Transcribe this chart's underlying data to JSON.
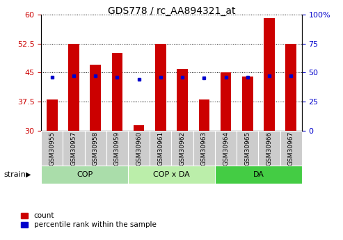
{
  "title": "GDS778 / rc_AA894321_at",
  "samples": [
    "GSM30955",
    "GSM30957",
    "GSM30958",
    "GSM30959",
    "GSM30960",
    "GSM30961",
    "GSM30962",
    "GSM30963",
    "GSM30964",
    "GSM30965",
    "GSM30966",
    "GSM30967"
  ],
  "count_values": [
    38.0,
    52.5,
    47.0,
    50.0,
    31.5,
    52.5,
    46.0,
    38.0,
    45.0,
    44.0,
    59.0,
    52.5
  ],
  "percentile_values": [
    46.0,
    47.0,
    47.0,
    46.0,
    44.5,
    46.0,
    46.0,
    45.5,
    46.0,
    46.0,
    47.0,
    47.0
  ],
  "ylim_left": [
    30,
    60
  ],
  "ylim_right": [
    0,
    100
  ],
  "yticks_left": [
    30,
    37.5,
    45,
    52.5,
    60
  ],
  "yticks_right": [
    0,
    25,
    50,
    75,
    100
  ],
  "bar_color": "#cc0000",
  "dot_color": "#0000cc",
  "bar_bottom": 30,
  "group_labels": [
    "COP",
    "COP x DA",
    "DA"
  ],
  "group_starts": [
    0,
    4,
    8
  ],
  "group_ends": [
    4,
    8,
    12
  ],
  "group_colors": [
    "#aaddaa",
    "#bbeeaa",
    "#44cc44"
  ],
  "strain_label": "strain",
  "legend_count_label": "count",
  "legend_pct_label": "percentile rank within the sample",
  "left_tick_color": "#cc0000",
  "right_tick_color": "#0000cc",
  "title_fontsize": 10,
  "bar_width": 0.5
}
